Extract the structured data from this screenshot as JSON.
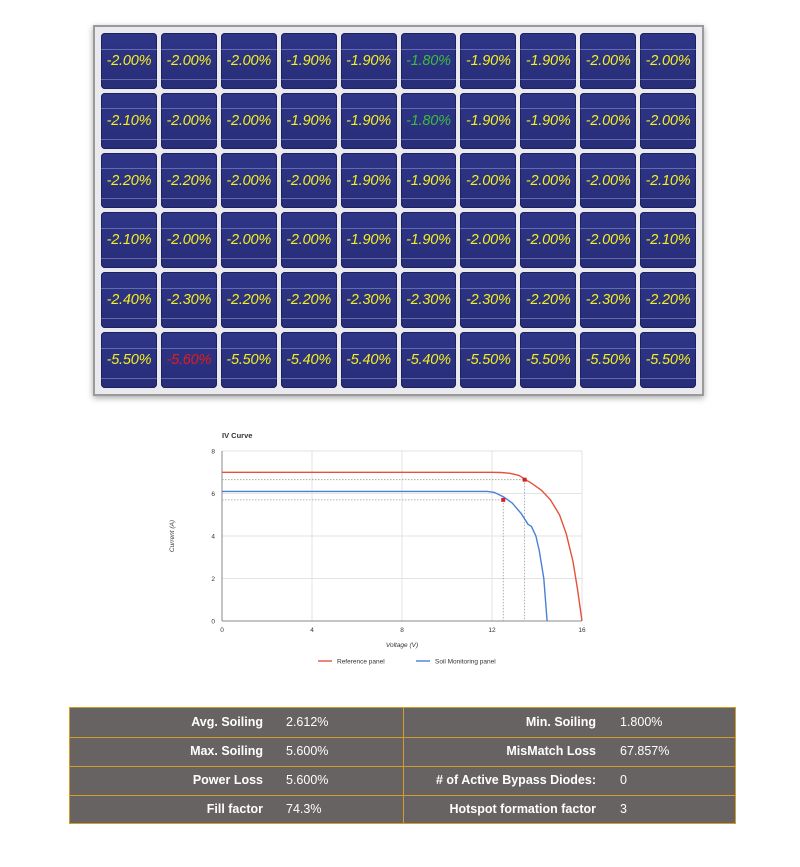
{
  "panel": {
    "rows": [
      [
        "-2.00%",
        "-2.00%",
        "-2.00%",
        "-1.90%",
        "-1.90%",
        "-1.80%",
        "-1.90%",
        "-1.90%",
        "-2.00%",
        "-2.00%"
      ],
      [
        "-2.10%",
        "-2.00%",
        "-2.00%",
        "-1.90%",
        "-1.90%",
        "-1.80%",
        "-1.90%",
        "-1.90%",
        "-2.00%",
        "-2.00%"
      ],
      [
        "-2.20%",
        "-2.20%",
        "-2.00%",
        "-2.00%",
        "-1.90%",
        "-1.90%",
        "-2.00%",
        "-2.00%",
        "-2.00%",
        "-2.10%"
      ],
      [
        "-2.10%",
        "-2.00%",
        "-2.00%",
        "-2.00%",
        "-1.90%",
        "-1.90%",
        "-2.00%",
        "-2.00%",
        "-2.00%",
        "-2.10%"
      ],
      [
        "-2.40%",
        "-2.30%",
        "-2.20%",
        "-2.20%",
        "-2.30%",
        "-2.30%",
        "-2.30%",
        "-2.20%",
        "-2.30%",
        "-2.20%"
      ],
      [
        "-5.50%",
        "-5.60%",
        "-5.50%",
        "-5.40%",
        "-5.40%",
        "-5.40%",
        "-5.50%",
        "-5.50%",
        "-5.50%",
        "-5.50%"
      ]
    ],
    "highlights": {
      "min": [
        [
          0,
          5
        ],
        [
          1,
          5
        ]
      ],
      "max": [
        [
          5,
          1
        ]
      ]
    },
    "colors": {
      "normal": "#f4ef1f",
      "min": "#3dbb3d",
      "max": "#e21c1c",
      "cell": "#2b3180"
    }
  },
  "chart_data": {
    "type": "line",
    "title": "IV Curve",
    "xlabel": "Voltage (V)",
    "ylabel": "Current (A)",
    "xlim": [
      0,
      16
    ],
    "ylim": [
      0,
      8
    ],
    "xticks": [
      0,
      4,
      8,
      12,
      16
    ],
    "yticks": [
      0,
      2,
      4,
      6,
      8
    ],
    "grid": true,
    "legend_position": "bottom",
    "series": [
      {
        "name": "Reference panel",
        "color": "#e4513a",
        "points": [
          [
            0,
            7.0
          ],
          [
            6,
            7.0
          ],
          [
            12,
            7.0
          ],
          [
            12.4,
            6.99
          ],
          [
            12.8,
            6.95
          ],
          [
            13.2,
            6.85
          ],
          [
            13.5,
            6.65
          ],
          [
            13.8,
            6.45
          ],
          [
            14.2,
            6.15
          ],
          [
            14.6,
            5.7
          ],
          [
            15.0,
            5.0
          ],
          [
            15.3,
            4.1
          ],
          [
            15.6,
            2.8
          ],
          [
            15.8,
            1.5
          ],
          [
            16.0,
            0
          ]
        ]
      },
      {
        "name": "Soil Monitoring panel",
        "color": "#4a7fd6",
        "points": [
          [
            0,
            6.1
          ],
          [
            6,
            6.1
          ],
          [
            11.8,
            6.1
          ],
          [
            12.1,
            6.05
          ],
          [
            12.5,
            5.85
          ],
          [
            12.9,
            5.55
          ],
          [
            13.3,
            5.05
          ],
          [
            13.6,
            4.55
          ],
          [
            13.75,
            4.45
          ],
          [
            13.95,
            4.0
          ],
          [
            14.1,
            3.3
          ],
          [
            14.3,
            2.0
          ],
          [
            14.45,
            0
          ]
        ]
      }
    ],
    "markers": [
      {
        "x": 13.45,
        "y": 6.65,
        "color": "#d42424"
      },
      {
        "x": 12.5,
        "y": 5.7,
        "color": "#d42424"
      }
    ]
  },
  "stats": [
    {
      "label1": "Avg. Soiling",
      "value1": "2.612%",
      "label2": "Min. Soiling",
      "value2": "1.800%"
    },
    {
      "label1": "Max. Soiling",
      "value1": "5.600%",
      "label2": "MisMatch Loss",
      "value2": "67.857%"
    },
    {
      "label1": "Power Loss",
      "value1": "5.600%",
      "label2": "# of Active Bypass Diodes:",
      "value2": "0"
    },
    {
      "label1": "Fill factor",
      "value1": "74.3%",
      "label2": "Hotspot formation factor",
      "value2": "3"
    }
  ]
}
